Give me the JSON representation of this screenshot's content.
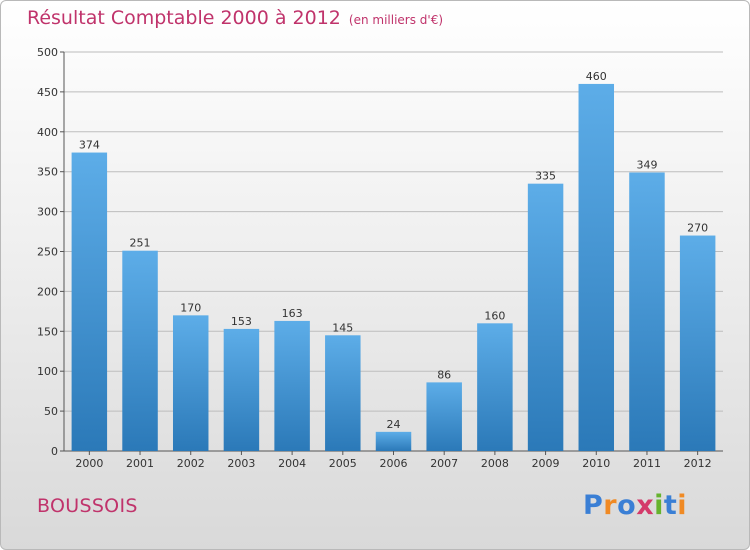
{
  "header": {
    "title": "Résultat Comptable 2000 à 2012",
    "subtitle": "(en milliers d'€)"
  },
  "footer": {
    "commune": "BOUSSOIS",
    "logo_letters": [
      {
        "ch": "P",
        "color": "#3a7fd5"
      },
      {
        "ch": "r",
        "color": "#f08a24"
      },
      {
        "ch": "o",
        "color": "#3a7fd5"
      },
      {
        "ch": "x",
        "color": "#d43a6a"
      },
      {
        "ch": "i",
        "color": "#66b32e"
      },
      {
        "ch": "t",
        "color": "#3a7fd5"
      },
      {
        "ch": "i",
        "color": "#f08a24"
      }
    ]
  },
  "colors": {
    "bar_top": "#5dade8",
    "bar_bottom": "#2b79b8",
    "title": "#c0336b",
    "grid": "#bdbdbd"
  },
  "chart_data": {
    "type": "bar",
    "categories": [
      "2000",
      "2001",
      "2002",
      "2003",
      "2004",
      "2005",
      "2006",
      "2007",
      "2008",
      "2009",
      "2010",
      "2011",
      "2012"
    ],
    "values": [
      374,
      251,
      170,
      153,
      163,
      145,
      24,
      86,
      160,
      335,
      460,
      349,
      270
    ],
    "ylim": [
      0,
      500
    ],
    "yticks": [
      0,
      50,
      100,
      150,
      200,
      250,
      300,
      350,
      400,
      450,
      500
    ],
    "grid": true,
    "title": "Résultat Comptable 2000 à 2012",
    "xlabel": "",
    "ylabel": ""
  }
}
